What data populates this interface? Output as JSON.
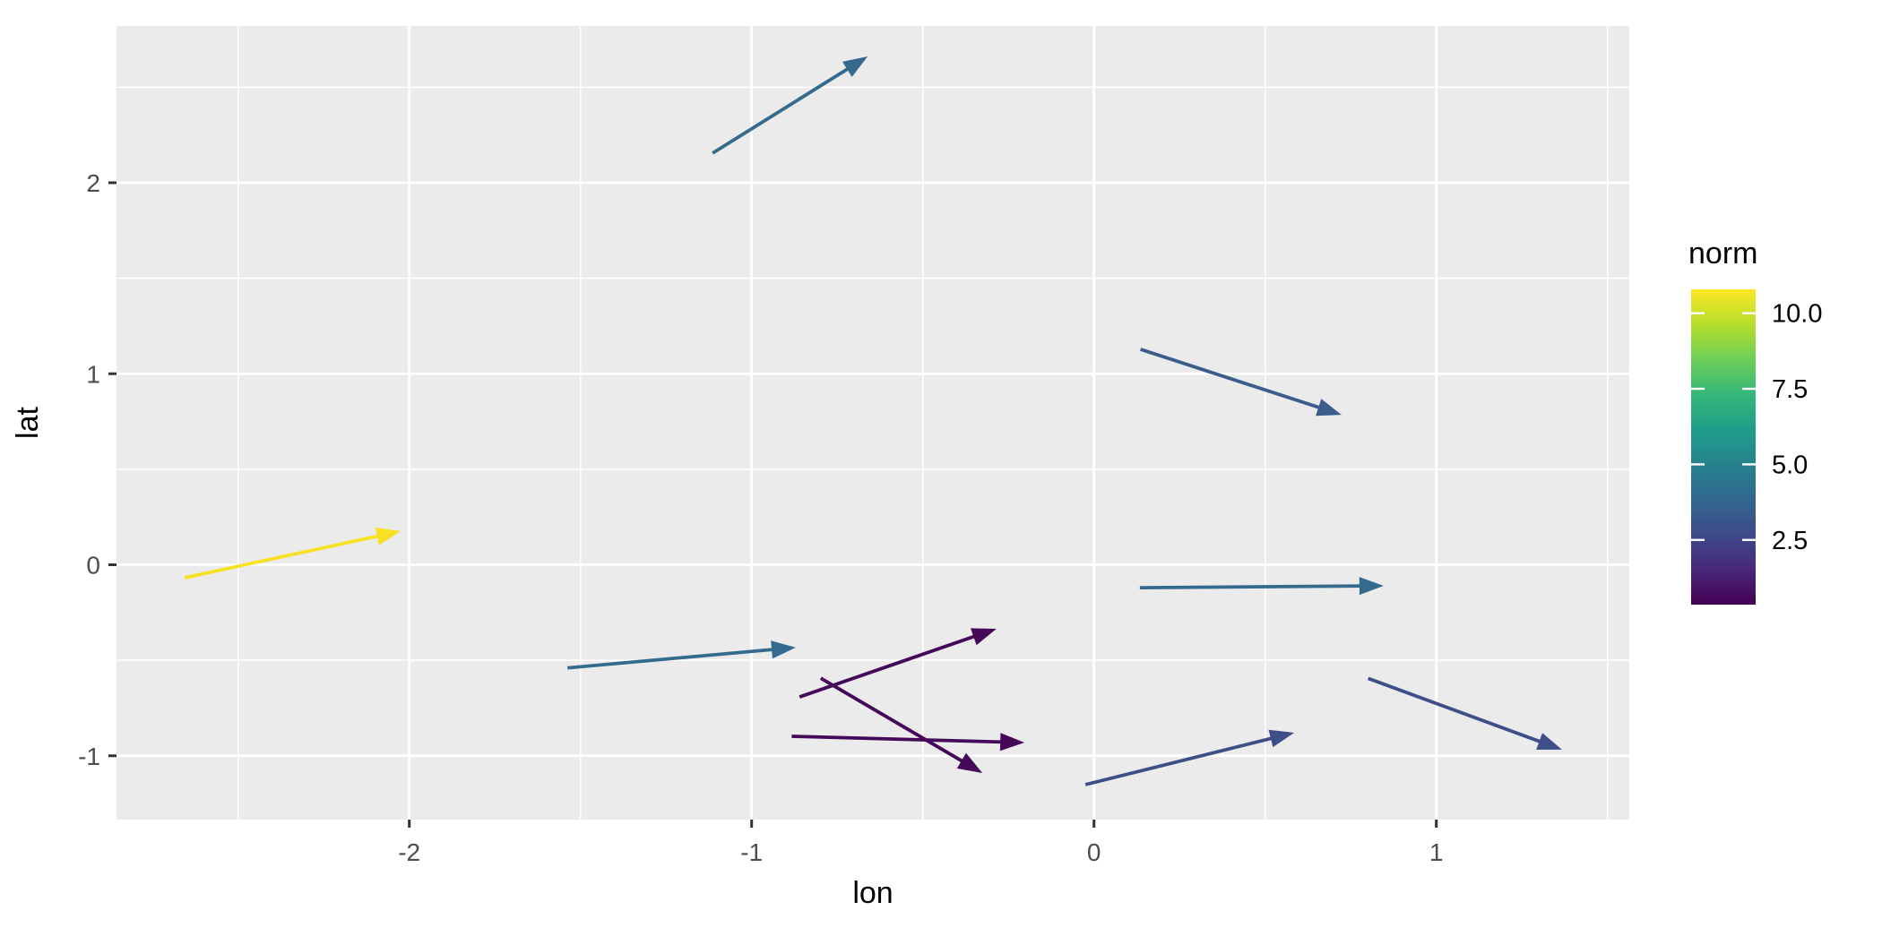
{
  "figure": {
    "background": "#ffffff",
    "panel_fill": "#ebebeb",
    "grid_color": "#ffffff",
    "tick_mark_color": "#333333",
    "tick_label_color": "#4d4d4d",
    "axis_title_color": "#000000"
  },
  "axes": {
    "x": {
      "title": "lon",
      "tick_labels": [
        "-2",
        "-1",
        "0",
        "1"
      ],
      "tick_values": [
        -2,
        -1,
        0,
        1
      ],
      "minor_values": [
        -2.5,
        -1.5,
        -0.5,
        0.5,
        1.5
      ],
      "range": [
        -2.855,
        1.563
      ]
    },
    "y": {
      "title": "lat",
      "tick_labels": [
        "-1",
        "0",
        "1",
        "2"
      ],
      "tick_values": [
        -1,
        0,
        1,
        2
      ],
      "minor_values": [
        -1.5,
        -0.5,
        0.5,
        1.5,
        2.5
      ],
      "range": [
        -1.334,
        2.82
      ]
    }
  },
  "legend": {
    "title": "norm",
    "tick_labels": [
      "10.0",
      "7.5",
      "5.0",
      "2.5"
    ],
    "tick_values": [
      10.0,
      7.5,
      5.0,
      2.5
    ],
    "domain": [
      0.36,
      10.79
    ],
    "viridis_stops": [
      "#440154",
      "#482878",
      "#3e4a89",
      "#31688e",
      "#26828e",
      "#1f9e89",
      "#35b779",
      "#6ece58",
      "#b5de2b",
      "#fde725"
    ]
  },
  "chart_data": {
    "type": "vector",
    "description": "ggplot2-style arrow segments (geom_segment with arrows) on lon/lat axes, colored by vector norm with viridis scale",
    "xlabel": "lon",
    "ylabel": "lat",
    "color_label": "norm",
    "xlim": [
      -2.855,
      1.563
    ],
    "ylim": [
      -1.334,
      2.82
    ],
    "grid": true,
    "legend_position": "right",
    "segments": [
      {
        "lon": -1.114,
        "lat": 2.155,
        "lon_end": -0.661,
        "lat_end": 2.661,
        "norm": 4.6,
        "color": "#336a8e"
      },
      {
        "lon": 0.136,
        "lat": 1.128,
        "lon_end": 0.723,
        "lat_end": 0.785,
        "norm": 3.4,
        "color": "#3b5d8c"
      },
      {
        "lon": -2.656,
        "lat": -0.068,
        "lon_end": -2.025,
        "lat_end": 0.176,
        "norm": 10.8,
        "color": "#f8e125"
      },
      {
        "lon": -1.538,
        "lat": -0.54,
        "lon_end": -0.871,
        "lat_end": -0.433,
        "norm": 4.6,
        "color": "#336a8e"
      },
      {
        "lon": 0.134,
        "lat": -0.12,
        "lon_end": 0.846,
        "lat_end": -0.11,
        "norm": 4.6,
        "color": "#336a8e"
      },
      {
        "lon": -0.86,
        "lat": -0.692,
        "lon_end": -0.285,
        "lat_end": -0.335,
        "norm": 0.45,
        "color": "#45095a"
      },
      {
        "lon": -0.798,
        "lat": -0.594,
        "lon_end": -0.326,
        "lat_end": -1.09,
        "norm": 0.45,
        "color": "#45095a"
      },
      {
        "lon": -0.883,
        "lat": -0.898,
        "lon_end": -0.203,
        "lat_end": -0.931,
        "norm": 0.5,
        "color": "#45095a"
      },
      {
        "lon": -0.025,
        "lat": -1.151,
        "lon_end": 0.585,
        "lat_end": -0.879,
        "norm": 2.6,
        "color": "#3e4e88"
      },
      {
        "lon": 0.801,
        "lat": -0.595,
        "lon_end": 1.367,
        "lat_end": -0.968,
        "norm": 2.6,
        "color": "#3e4e88"
      }
    ]
  }
}
